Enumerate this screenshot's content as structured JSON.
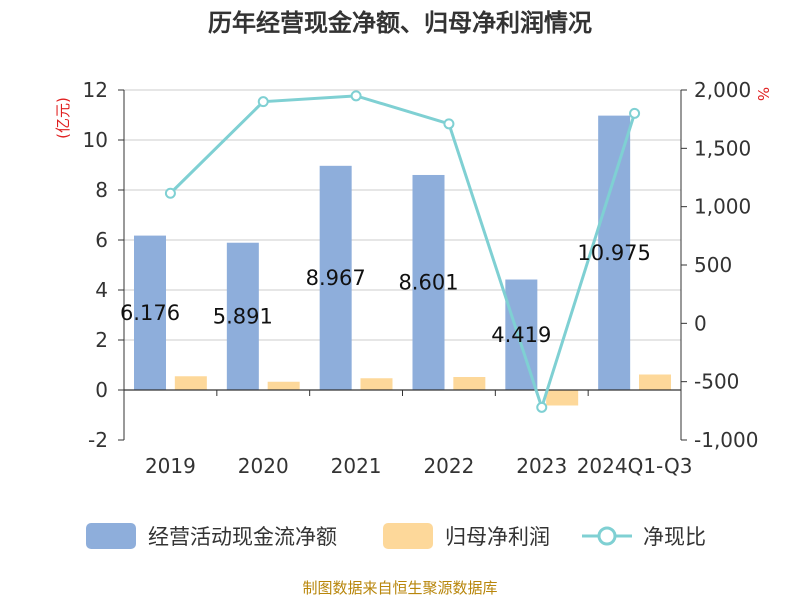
{
  "chart_data": {
    "type": "bar",
    "title": "历年经营现金净额、归母净利润情况",
    "categories": [
      "2019",
      "2020",
      "2021",
      "2022",
      "2023",
      "2024Q1-Q3"
    ],
    "left_axis": {
      "unit": "(亿元)",
      "ylim": [
        -2,
        12
      ],
      "ticks": [
        "12",
        "10",
        "8",
        "6",
        "4",
        "2",
        "0",
        "-2"
      ]
    },
    "right_axis": {
      "unit": "%",
      "ylim": [
        -1000,
        2000
      ],
      "ticks": [
        "2,000",
        "1,500",
        "1,000",
        "500",
        "0",
        "-500",
        "-1,000"
      ]
    },
    "series": [
      {
        "name": "经营活动现金流净额",
        "type": "bar",
        "axis": "left",
        "color": "#8eaedb",
        "values": [
          6.176,
          5.891,
          8.967,
          8.601,
          4.419,
          10.975
        ],
        "labels": [
          "6.176",
          "5.891",
          "8.967",
          "8.601",
          "4.419",
          "10.975"
        ]
      },
      {
        "name": "归母净利润",
        "type": "bar",
        "axis": "left",
        "color": "#fdd89a",
        "values": [
          0.55,
          0.33,
          0.47,
          0.52,
          -0.62,
          0.62
        ]
      },
      {
        "name": "净现比",
        "type": "line",
        "axis": "right",
        "color": "#7fd0d3",
        "values": [
          1115,
          1900,
          1950,
          1710,
          -720,
          1800
        ]
      }
    ],
    "grid": true,
    "legend": "bottom"
  },
  "footer": {
    "source": "制图数据来自恒生聚源数据库"
  }
}
